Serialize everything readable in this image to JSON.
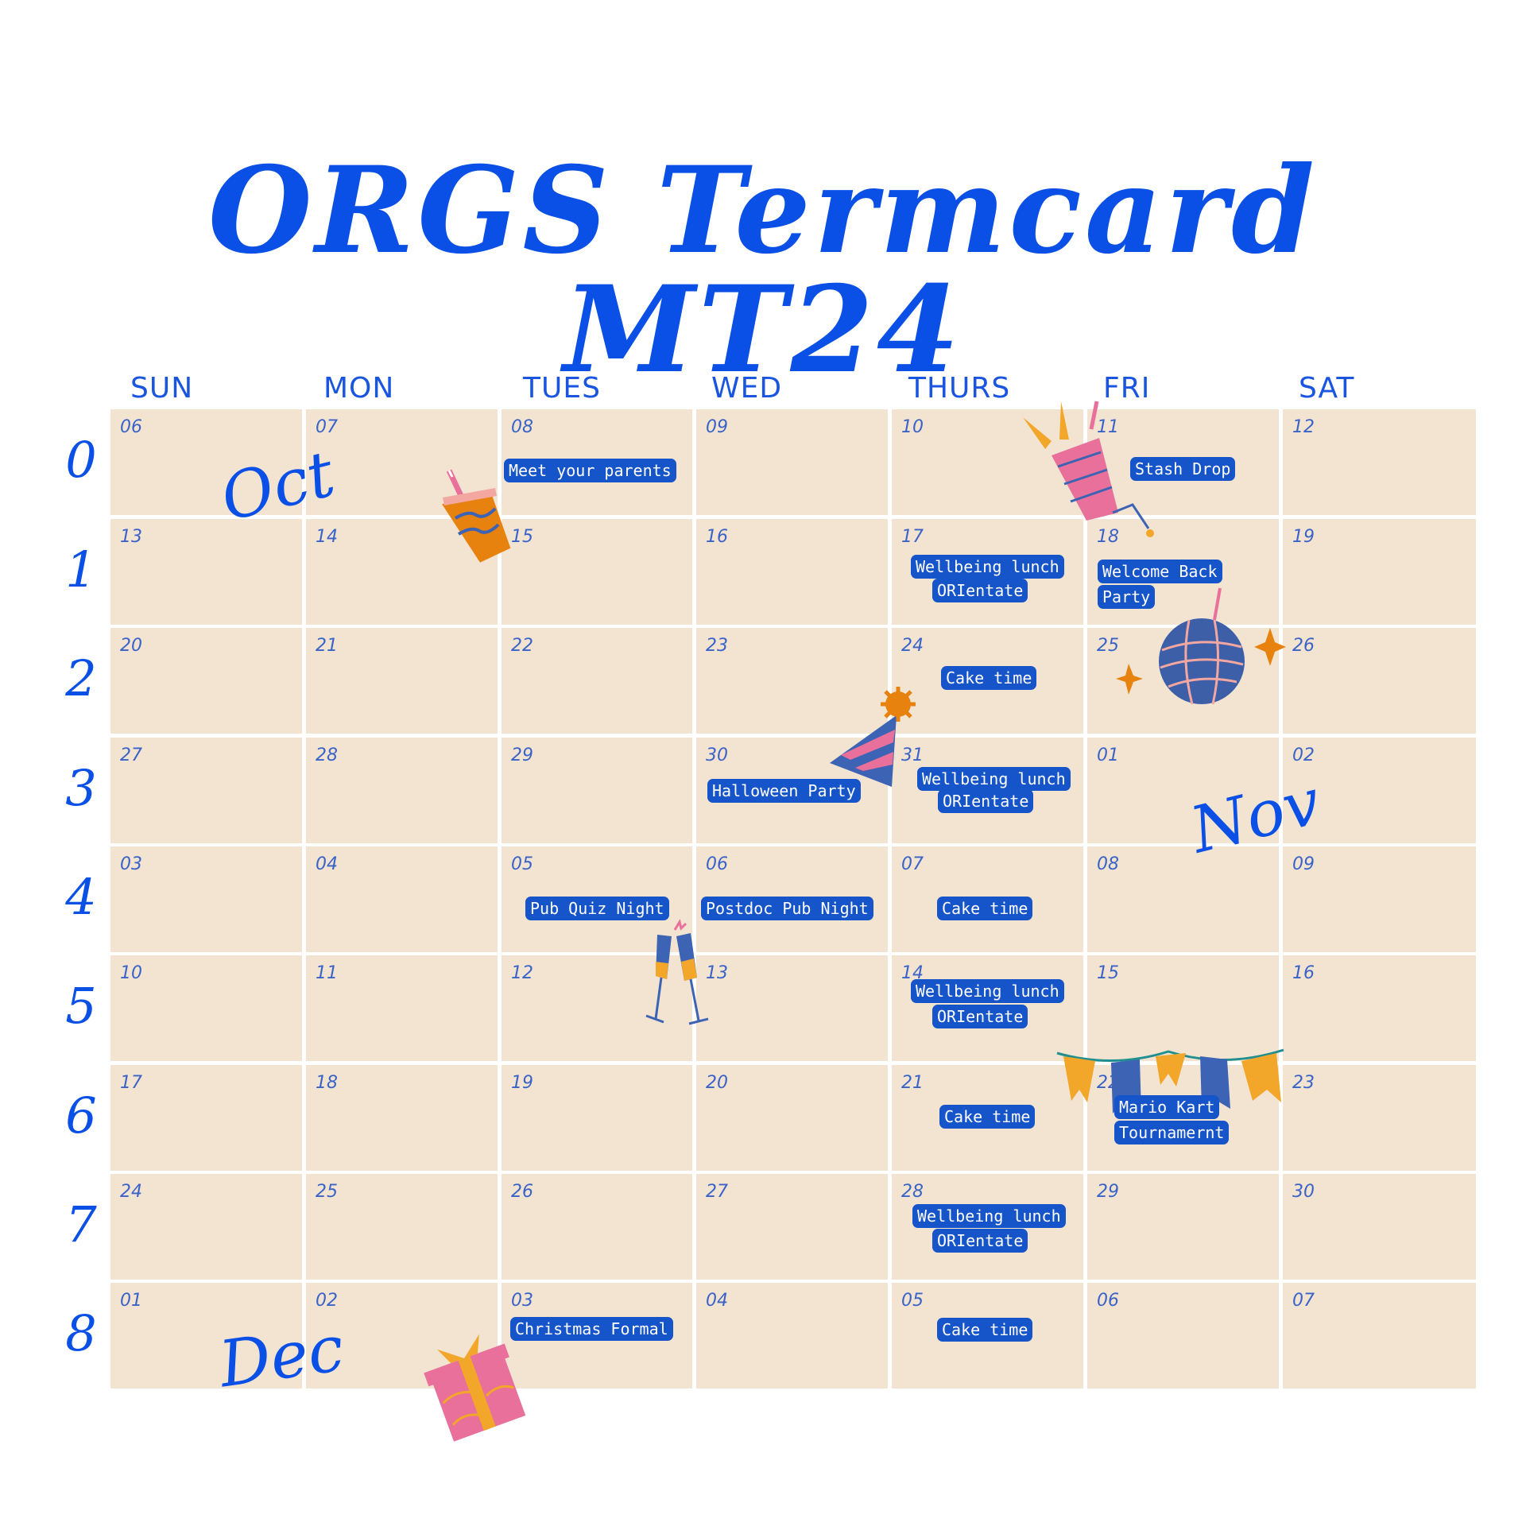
{
  "title": "ORGS Termcard MT24",
  "days": [
    "SUN",
    "MON",
    "TUES",
    "WED",
    "THURS",
    "FRI",
    "SAT"
  ],
  "weeks": [
    "0",
    "1",
    "2",
    "3",
    "4",
    "5",
    "6",
    "7",
    "8"
  ],
  "months": {
    "oct": "Oct",
    "nov": "Nov",
    "dec": "Dec"
  },
  "dates": [
    [
      "06",
      "07",
      "08",
      "09",
      "10",
      "11",
      "12"
    ],
    [
      "13",
      "14",
      "15",
      "16",
      "17",
      "18",
      "19"
    ],
    [
      "20",
      "21",
      "22",
      "23",
      "24",
      "25",
      "26"
    ],
    [
      "27",
      "28",
      "29",
      "30",
      "31",
      "01",
      "02"
    ],
    [
      "03",
      "04",
      "05",
      "06",
      "07",
      "08",
      "09"
    ],
    [
      "10",
      "11",
      "12",
      "13",
      "14",
      "15",
      "16"
    ],
    [
      "17",
      "18",
      "19",
      "20",
      "21",
      "22",
      "23"
    ],
    [
      "24",
      "25",
      "26",
      "27",
      "28",
      "29",
      "30"
    ],
    [
      "01",
      "02",
      "03",
      "04",
      "05",
      "06",
      "07"
    ]
  ],
  "events": {
    "meet_parents": "Meet your parents",
    "stash_drop": "Stash Drop",
    "wellbeing": "Wellbeing lunch",
    "orientate": "ORIentate",
    "welcome_back_1": "Welcome Back",
    "welcome_back_2": "Party",
    "cake_time": "Cake time",
    "halloween": "Halloween Party",
    "pub_quiz": "Pub Quiz Night",
    "postdoc_pub": "Postdoc Pub Night",
    "mario_kart_1": "Mario Kart",
    "mario_kart_2": "Tournamernt",
    "christmas_formal": "Christmas Formal"
  },
  "colors": {
    "background": "#ffffff",
    "cell": "#f3e4d2",
    "accent": "#0b50e6",
    "event_bg": "#1654c9"
  },
  "icons": [
    "drink-cup-icon",
    "party-popper-icon",
    "disco-ball-icon",
    "party-hat-icon",
    "champagne-glasses-icon",
    "bunting-icon",
    "gift-box-icon"
  ]
}
